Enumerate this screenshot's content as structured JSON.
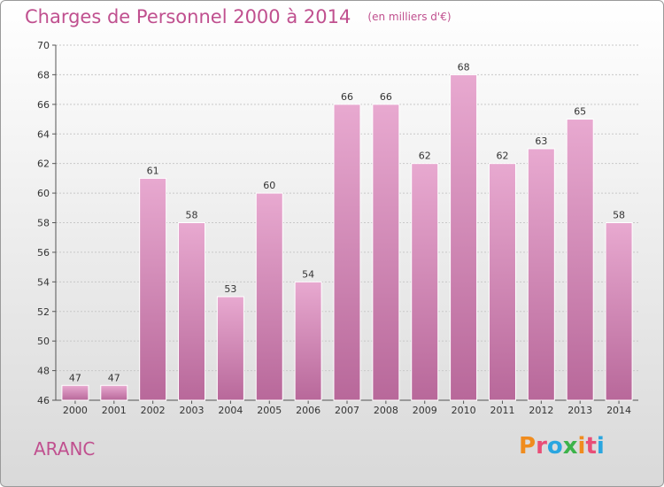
{
  "chart_data": {
    "type": "bar",
    "title": "Charges de Personnel 2000 à 2014",
    "subtitle": "(en milliers d'€)",
    "categories": [
      "2000",
      "2001",
      "2002",
      "2003",
      "2004",
      "2005",
      "2006",
      "2007",
      "2008",
      "2009",
      "2010",
      "2011",
      "2012",
      "2013",
      "2014"
    ],
    "values": [
      47,
      47,
      61,
      58,
      53,
      60,
      54,
      66,
      66,
      62,
      68,
      62,
      63,
      65,
      58
    ],
    "ylim": [
      46,
      70
    ],
    "yticks": [
      46,
      48,
      50,
      52,
      54,
      56,
      58,
      60,
      62,
      64,
      66,
      68,
      70
    ],
    "grid": true,
    "bar_color": "#d98cbc"
  },
  "footer": {
    "commune": "ARANC",
    "logo": "Proxiti"
  },
  "colors": {
    "title": "#c0508f",
    "logo_letters": [
      "#f08c1e",
      "#e94e77",
      "#2aa6e0",
      "#3cb34a",
      "#f08c1e",
      "#e94e77",
      "#2aa6e0"
    ]
  }
}
